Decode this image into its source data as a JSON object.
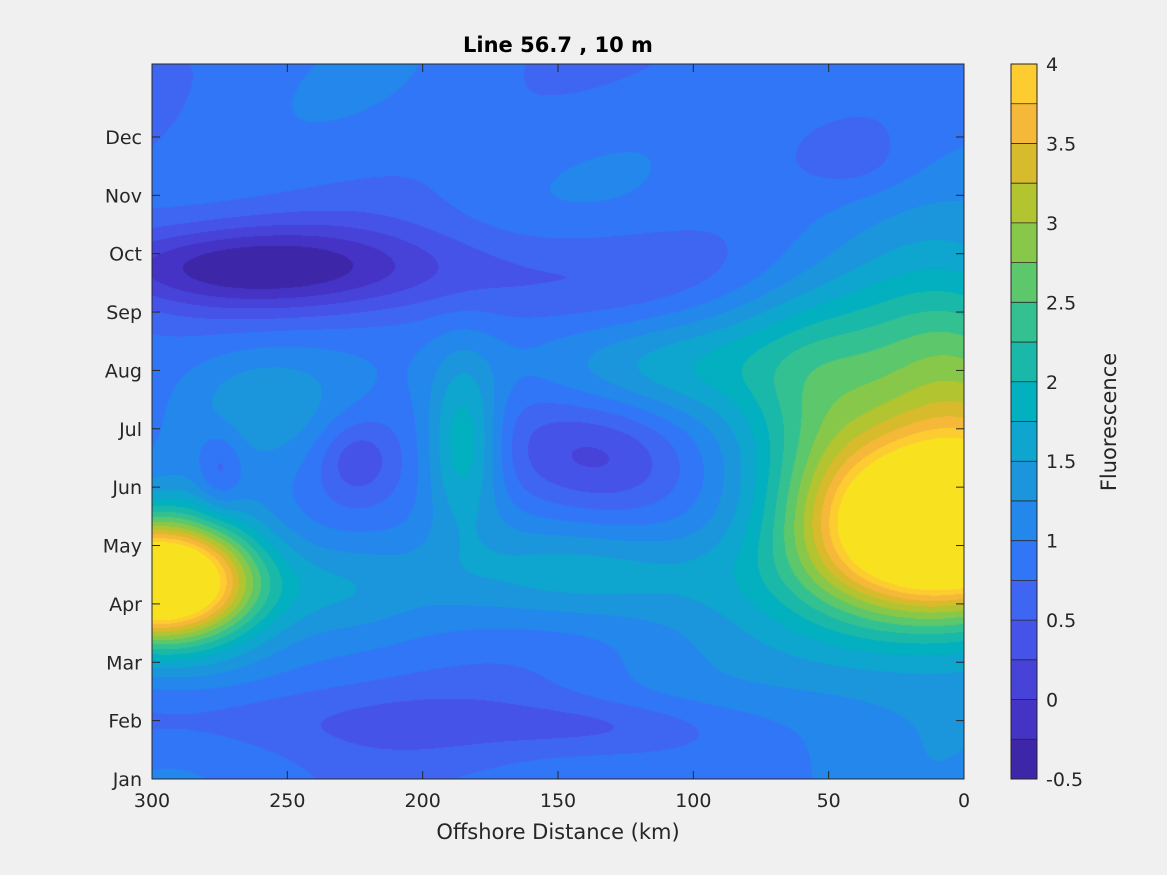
{
  "chart_data": {
    "type": "heatmap",
    "title": "Line 56.7 , 10 m",
    "xlabel": "Offshore Distance (km)",
    "ylabel": "",
    "x_reversed": true,
    "xlim": [
      0,
      300
    ],
    "x_ticks": [
      300,
      250,
      200,
      150,
      100,
      50,
      0
    ],
    "x_tick_labels": [
      "300",
      "250",
      "200",
      "150",
      "100",
      "50",
      "0"
    ],
    "y_ticks": [
      "Jan",
      "Feb",
      "Mar",
      "Apr",
      "May",
      "Jun",
      "Jul",
      "Aug",
      "Sep",
      "Oct",
      "Nov",
      "Dec"
    ],
    "colorbar": {
      "label": "Fluorescence",
      "range": [
        -0.5,
        4
      ],
      "levels_step": 0.25,
      "ticks": [
        4,
        3.5,
        3,
        2.5,
        2,
        1.5,
        1,
        0.5,
        0,
        -0.5
      ],
      "tick_labels": [
        "4",
        "3.5",
        "3",
        "2.5",
        "2",
        "1.5",
        "1",
        "0.5",
        "0",
        "-0.5"
      ],
      "colors": [
        "#3e26a8",
        "#4433c4",
        "#4743d9",
        "#4653e8",
        "#3f66f2",
        "#3176f7",
        "#2487ec",
        "#1b96dc",
        "#0ea5cf",
        "#03b0bf",
        "#1ab8a8",
        "#34c191",
        "#5cc76b",
        "#87c84a",
        "#b2c430",
        "#d8bb2c",
        "#f5b838",
        "#fccc31",
        "#f8e21f"
      ]
    },
    "peaks": [
      {
        "km": 300,
        "month": 4.4,
        "value": 3.4,
        "rx": 25,
        "ry": 0.7
      },
      {
        "km": 290,
        "month": 4.3,
        "value": 1.5,
        "rx": 25,
        "ry": 0.9
      },
      {
        "km": 5,
        "month": 5.3,
        "value": 3.8,
        "rx": 35,
        "ry": 1.0
      },
      {
        "km": 20,
        "month": 6.2,
        "value": 1.5,
        "rx": 45,
        "ry": 2.6
      },
      {
        "km": 0,
        "month": 8.2,
        "value": 0.9,
        "rx": 25,
        "ry": 1.3
      },
      {
        "km": 185,
        "month": 6.8,
        "value": 1.2,
        "rx": 10,
        "ry": 1.0
      },
      {
        "km": 135,
        "month": 4.5,
        "value": 0.75,
        "rx": 38,
        "ry": 0.6
      },
      {
        "km": 120,
        "month": 8.1,
        "value": 0.65,
        "rx": 40,
        "ry": 0.6
      },
      {
        "km": 55,
        "month": 7.3,
        "value": 0.5,
        "rx": 18,
        "ry": 1.1
      },
      {
        "km": 230,
        "month": 4.3,
        "value": 0.5,
        "rx": 20,
        "ry": 0.6
      },
      {
        "km": 260,
        "month": 7.5,
        "value": 0.45,
        "rx": 22,
        "ry": 0.7
      },
      {
        "km": 135,
        "month": 6.5,
        "value": -0.75,
        "rx": 25,
        "ry": 0.7
      },
      {
        "km": 225,
        "month": 6.5,
        "value": -0.55,
        "rx": 10,
        "ry": 0.5
      },
      {
        "km": 275,
        "month": 6.3,
        "value": -0.5,
        "rx": 6,
        "ry": 0.5
      },
      {
        "km": 270,
        "month": 9.8,
        "value": -0.85,
        "rx": 45,
        "ry": 0.5
      },
      {
        "km": 200,
        "month": 9.7,
        "value": -0.45,
        "rx": 110,
        "ry": 0.6
      },
      {
        "km": 130,
        "month": 1.9,
        "value": -0.45,
        "rx": 32,
        "ry": 0.35
      },
      {
        "km": 250,
        "month": 2.0,
        "value": -0.35,
        "rx": 60,
        "ry": 0.45
      },
      {
        "km": 40,
        "month": 11.6,
        "value": -0.2,
        "rx": 12,
        "ry": 0.35
      }
    ]
  }
}
